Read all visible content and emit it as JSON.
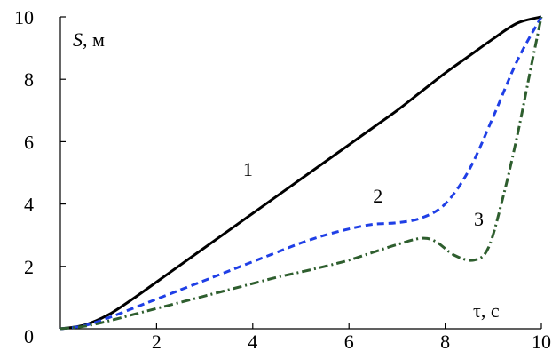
{
  "chart_data": {
    "type": "line",
    "title": "",
    "xlabel": "τ, с",
    "ylabel_italic": "S",
    "ylabel_rest": ", м",
    "xlim": [
      0,
      10
    ],
    "ylim": [
      0,
      10
    ],
    "grid": false,
    "x_ticks": [
      {
        "value": 2,
        "label": "2"
      },
      {
        "value": 4,
        "label": "4"
      },
      {
        "value": 6,
        "label": "6"
      },
      {
        "value": 8,
        "label": "8"
      },
      {
        "value": 10,
        "label": "10"
      }
    ],
    "y_ticks": [
      {
        "value": 0,
        "label": "0"
      },
      {
        "value": 2,
        "label": "2"
      },
      {
        "value": 4,
        "label": "4"
      },
      {
        "value": 6,
        "label": "6"
      },
      {
        "value": 8,
        "label": "8"
      },
      {
        "value": 10,
        "label": "10"
      }
    ],
    "series": [
      {
        "label": "1",
        "color": "#000000",
        "style": "solid",
        "x": [
          0,
          0.5,
          1,
          1.5,
          2,
          2.5,
          3,
          3.5,
          4,
          4.5,
          5,
          5.5,
          6,
          6.5,
          7,
          7.5,
          8,
          8.5,
          9,
          9.5,
          10
        ],
        "y": [
          0,
          0.12,
          0.45,
          0.95,
          1.5,
          2.05,
          2.6,
          3.15,
          3.7,
          4.25,
          4.8,
          5.35,
          5.9,
          6.45,
          7.0,
          7.6,
          8.2,
          8.75,
          9.3,
          9.8,
          10.0
        ]
      },
      {
        "label": "2",
        "color": "#1f3fe6",
        "style": "dashed",
        "x": [
          0,
          0.5,
          1,
          1.5,
          2,
          2.5,
          3,
          3.5,
          4,
          4.5,
          5,
          5.5,
          6,
          6.5,
          7,
          7.5,
          8,
          8.5,
          9,
          9.5,
          10
        ],
        "y": [
          0,
          0.1,
          0.35,
          0.65,
          0.95,
          1.25,
          1.55,
          1.85,
          2.15,
          2.45,
          2.75,
          3.0,
          3.2,
          3.35,
          3.4,
          3.55,
          4.0,
          5.1,
          6.8,
          8.6,
          10.0
        ]
      },
      {
        "label": "3",
        "color": "#2e5e2e",
        "style": "dashdot",
        "x": [
          0,
          0.5,
          1,
          1.5,
          2,
          2.5,
          3,
          3.5,
          4,
          4.5,
          5,
          5.5,
          6,
          6.5,
          7,
          7.5,
          7.8,
          8.2,
          8.6,
          8.9,
          9.2,
          9.5,
          9.8,
          10
        ],
        "y": [
          0,
          0.08,
          0.25,
          0.45,
          0.65,
          0.85,
          1.05,
          1.25,
          1.45,
          1.65,
          1.82,
          2.0,
          2.2,
          2.45,
          2.7,
          2.9,
          2.8,
          2.35,
          2.2,
          2.6,
          4.2,
          6.2,
          8.5,
          10.0
        ]
      }
    ],
    "curve_labels": [
      {
        "text": "1",
        "x": 3.9,
        "y": 4.9
      },
      {
        "text": "2",
        "x": 6.6,
        "y": 4.05
      },
      {
        "text": "3",
        "x": 8.7,
        "y": 3.3
      }
    ]
  }
}
